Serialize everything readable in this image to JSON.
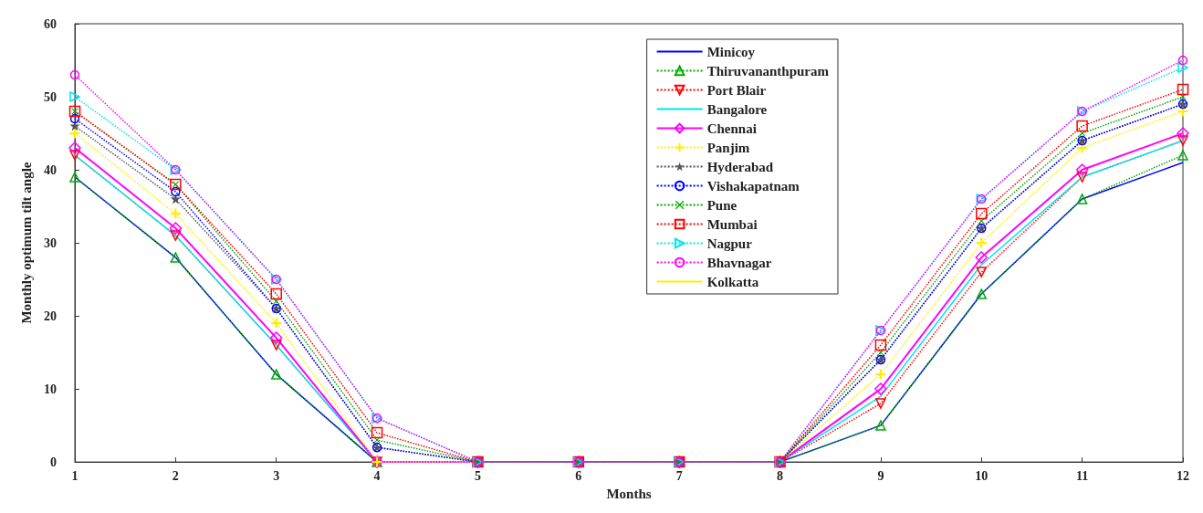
{
  "chart_data": {
    "type": "line",
    "xlabel": "Months",
    "ylabel": "Monthly optimum tilt angle",
    "x": [
      1,
      2,
      3,
      4,
      5,
      6,
      7,
      8,
      9,
      10,
      11,
      12
    ],
    "xlim": [
      1,
      12
    ],
    "xticks": [
      1,
      2,
      3,
      4,
      5,
      6,
      7,
      8,
      9,
      10,
      11,
      12
    ],
    "ylim": [
      0,
      60
    ],
    "yticks": [
      0,
      10,
      20,
      30,
      40,
      50,
      60
    ],
    "grid": false,
    "legend": "top right",
    "series": [
      {
        "name": "Minicoy",
        "color": "#0000ff",
        "marker": "none",
        "line_style": "solid",
        "values": [
          39,
          28,
          12,
          0,
          0,
          0,
          0,
          0,
          5,
          23,
          36,
          41
        ]
      },
      {
        "name": "Thiruvananthpuram",
        "color": "#00aa00",
        "marker": "triangle",
        "line_style": "dotted",
        "values": [
          39,
          28,
          12,
          0,
          0,
          0,
          0,
          0,
          5,
          23,
          36,
          42
        ]
      },
      {
        "name": "Port Blair",
        "color": "#ff0000",
        "marker": "triangle-down",
        "line_style": "dotted",
        "values": [
          42,
          31,
          16,
          0,
          0,
          0,
          0,
          0,
          8,
          26,
          39,
          44
        ]
      },
      {
        "name": "Bangalore",
        "color": "#00e5ee",
        "marker": "none",
        "line_style": "solid",
        "values": [
          42,
          31,
          16,
          0,
          0,
          0,
          0,
          0,
          9,
          27,
          39,
          44
        ]
      },
      {
        "name": "Chennai",
        "color": "#ff00ff",
        "marker": "diamond",
        "line_style": "solid",
        "values": [
          43,
          32,
          17,
          0,
          0,
          0,
          0,
          0,
          10,
          28,
          40,
          45
        ]
      },
      {
        "name": "Panjim",
        "color": "#ffee00",
        "marker": "plus",
        "line_style": "dotted",
        "values": [
          45,
          34,
          19,
          0,
          0,
          0,
          0,
          0,
          12,
          30,
          43,
          48
        ]
      },
      {
        "name": "Hyderabad",
        "color": "#555555",
        "marker": "star",
        "line_style": "dotted",
        "values": [
          46,
          36,
          21,
          2,
          0,
          0,
          0,
          0,
          14,
          32,
          44,
          49
        ]
      },
      {
        "name": "Vishakapatnam",
        "color": "#0000ff",
        "marker": "circle",
        "line_style": "dotted",
        "values": [
          47,
          37,
          21,
          2,
          0,
          0,
          0,
          0,
          14,
          32,
          44,
          49
        ]
      },
      {
        "name": "Pune",
        "color": "#00aa00",
        "marker": "cross",
        "line_style": "dotted",
        "values": [
          48,
          38,
          22,
          3,
          0,
          0,
          0,
          0,
          15,
          33,
          45,
          50
        ]
      },
      {
        "name": "Mumbai",
        "color": "#ff0000",
        "marker": "square",
        "line_style": "dotted",
        "values": [
          48,
          38,
          23,
          4,
          0,
          0,
          0,
          0,
          16,
          34,
          46,
          51
        ]
      },
      {
        "name": "Nagpur",
        "color": "#00e5ee",
        "marker": "triangle-right",
        "line_style": "dotted",
        "values": [
          50,
          40,
          25,
          6,
          0,
          0,
          0,
          0,
          18,
          36,
          48,
          54
        ]
      },
      {
        "name": "Bhavnagar",
        "color": "#ff00ff",
        "marker": "circle",
        "line_style": "dotted",
        "values": [
          53,
          40,
          25,
          6,
          0,
          0,
          0,
          0,
          18,
          36,
          48,
          55
        ]
      },
      {
        "name": "Kolkatta",
        "color": "#ffee00",
        "marker": "none",
        "line_style": "solid",
        "values": [
          null,
          null,
          null,
          null,
          null,
          null,
          null,
          null,
          null,
          null,
          null,
          null
        ]
      }
    ]
  }
}
